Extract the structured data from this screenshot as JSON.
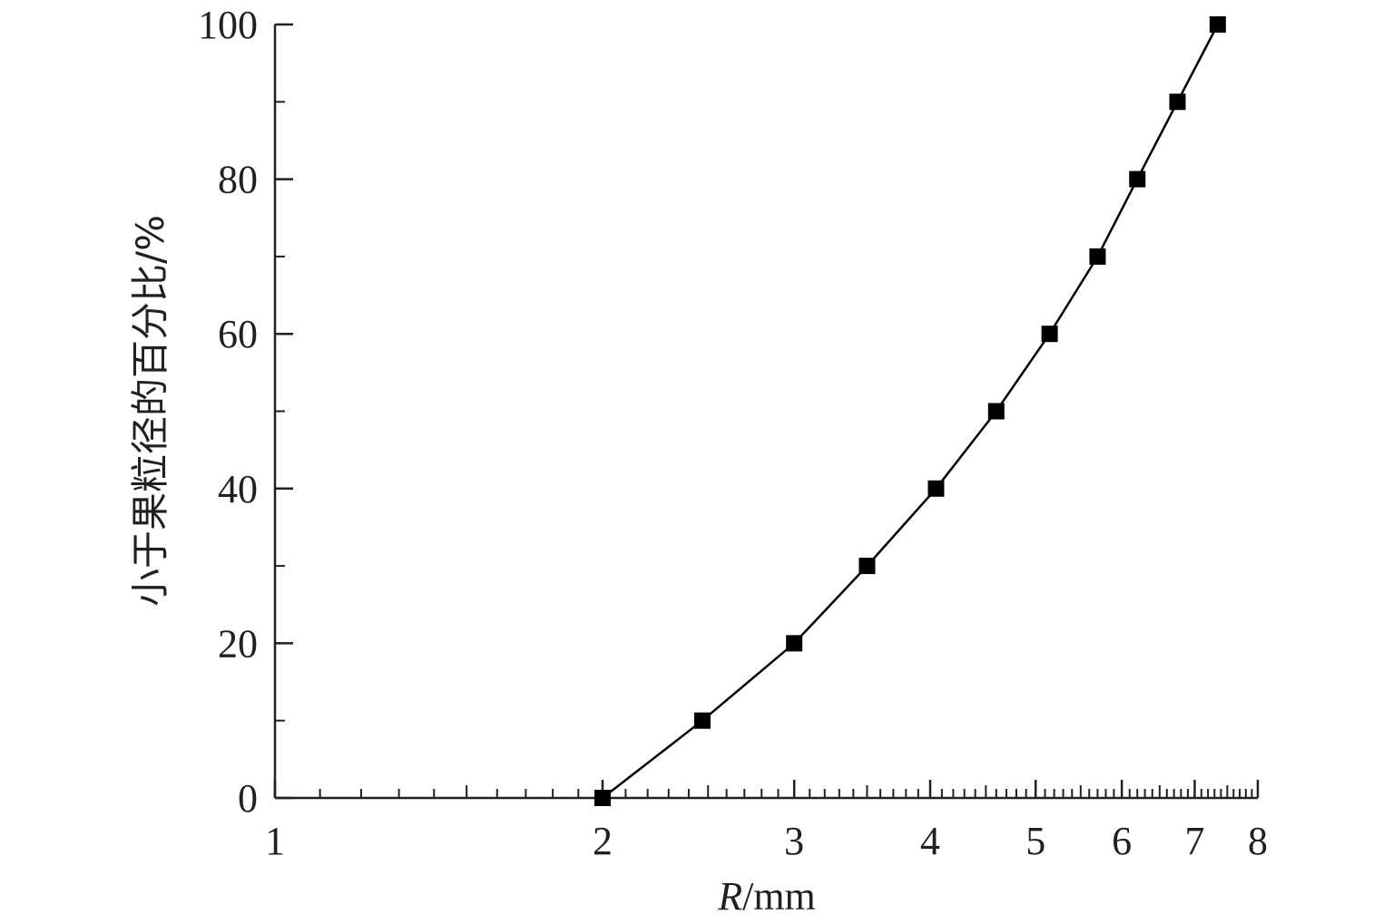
{
  "chart_data": {
    "type": "line",
    "xscale": "log",
    "xlim": [
      1,
      8
    ],
    "ylim": [
      0,
      100
    ],
    "x_ticks": [
      1,
      2,
      3,
      4,
      5,
      6,
      7,
      8
    ],
    "x_tick_labels": [
      "1",
      "2",
      "3",
      "4",
      "5",
      "6",
      "7",
      "8"
    ],
    "y_ticks": [
      0,
      20,
      40,
      60,
      80,
      100
    ],
    "y_tick_labels": [
      "0",
      "20",
      "40",
      "60",
      "80",
      "100"
    ],
    "xlabel_italic": "R",
    "xlabel_rest": "/mm",
    "ylabel": "小于果粒径的百分比/%",
    "marker": "square",
    "line_color": "#000000",
    "marker_color": "#000000",
    "axis_color": "#231f20",
    "grid": false,
    "series": [
      {
        "x": [
          2.0,
          2.47,
          3.0,
          3.5,
          4.05,
          4.6,
          5.15,
          5.7,
          6.2,
          6.75,
          7.35
        ],
        "y": [
          0,
          10,
          20,
          30,
          40,
          50,
          60,
          70,
          80,
          90,
          100
        ]
      }
    ]
  }
}
